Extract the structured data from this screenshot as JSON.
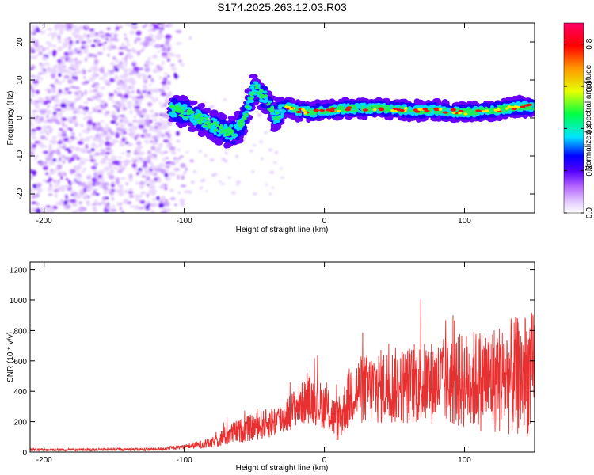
{
  "title": "S174.2025.263.12.03.R03",
  "chart_data": [
    {
      "type": "heatmap",
      "name": "spectrogram",
      "xlabel": "Height of straight line (km)",
      "ylabel": "Frequency (Hz)",
      "xlim": [
        -210,
        150
      ],
      "ylim": [
        -25,
        25
      ],
      "xticks": [
        -200,
        -100,
        0,
        100
      ],
      "xtick_labels": [
        "-200",
        "-100",
        "0",
        "100"
      ],
      "yticks": [
        -20,
        -10,
        0,
        10,
        20
      ],
      "ytick_labels": [
        "-20",
        "-10",
        "0",
        "10",
        "20"
      ],
      "ridge": {
        "x": [
          -110,
          -100,
          -90,
          -80,
          -70,
          -65,
          -58,
          -50,
          -42,
          -35,
          -28,
          -20,
          -10,
          0,
          20,
          40,
          60,
          80,
          100,
          120,
          140,
          150
        ],
        "y": [
          2.5,
          1.5,
          0,
          -2,
          -3.5,
          -4,
          -1,
          8,
          5,
          0,
          3,
          2,
          1.5,
          2,
          2.5,
          2.5,
          2,
          2,
          1.5,
          2,
          3,
          3
        ]
      },
      "noise_region_x": [
        -210,
        -110
      ],
      "colorbar": {
        "label": "Normalized spectral amplitude",
        "range": [
          0,
          0.9
        ],
        "ticks": [
          0.0,
          0.2,
          0.4,
          0.6,
          0.8
        ],
        "tick_labels": [
          "0.0",
          "0.2",
          "0.4",
          "0.6",
          "0.8"
        ],
        "colors": [
          "#ffffff",
          "#b565ff",
          "#5500ff",
          "#0000ff",
          "#00e5ff",
          "#00ff44",
          "#e6ff00",
          "#ff9900",
          "#ff0000",
          "#ff0066"
        ]
      }
    },
    {
      "type": "line",
      "name": "snr",
      "xlabel": "Height of straight line (km)",
      "ylabel": "SNR (10 * v/v)",
      "xlim": [
        -210,
        150
      ],
      "ylim": [
        0,
        1250
      ],
      "xticks": [
        -200,
        -100,
        0,
        100
      ],
      "xtick_labels": [
        "-200",
        "-100",
        "0",
        "100"
      ],
      "yticks": [
        0,
        200,
        400,
        600,
        800,
        1000,
        1200
      ],
      "ytick_labels": [
        "0",
        "200",
        "400",
        "600",
        "800",
        "1000",
        "1200"
      ],
      "color": "#e83030",
      "envelope": {
        "x": [
          -210,
          -120,
          -100,
          -80,
          -70,
          -60,
          -40,
          -30,
          -20,
          -10,
          0,
          10,
          20,
          40,
          60,
          80,
          100,
          120,
          140,
          150
        ],
        "mean": [
          15,
          18,
          35,
          60,
          110,
          140,
          190,
          220,
          300,
          350,
          300,
          200,
          400,
          430,
          440,
          460,
          470,
          480,
          500,
          520
        ],
        "amplitude": [
          8,
          10,
          15,
          35,
          70,
          80,
          100,
          110,
          130,
          160,
          150,
          140,
          220,
          250,
          260,
          280,
          320,
          360,
          400,
          420
        ]
      }
    }
  ]
}
